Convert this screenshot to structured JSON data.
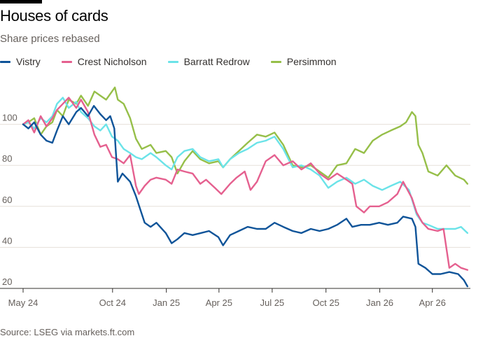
{
  "header": {
    "title": "Houses of cards",
    "subtitle": "Share prices rebased"
  },
  "source": "Source: LSEG via markets.ft.com",
  "colors": {
    "Vistry": "#0f5499",
    "Crest Nicholson": "#e5608f",
    "Barratt Redrow": "#6be3e8",
    "Persimmon": "#96bf49",
    "grid": "#e6e0da",
    "axis": "#33302e"
  },
  "chart_data": {
    "type": "line",
    "title": "Houses of cards",
    "subtitle": "Share prices rebased",
    "xlabel": "",
    "ylabel": "",
    "xlim": [
      "2024-05-01",
      "2026-06-05"
    ],
    "ylim": [
      20,
      120
    ],
    "yticks": [
      20,
      40,
      60,
      80,
      100
    ],
    "xticks": [
      {
        "label": "May 24",
        "date": "2024-05-01"
      },
      {
        "label": "Oct 24",
        "date": "2024-10-01"
      },
      {
        "label": "Jan 25",
        "date": "2025-01-01"
      },
      {
        "label": "Apr 25",
        "date": "2025-04-01"
      },
      {
        "label": "Jul 25",
        "date": "2025-07-01"
      },
      {
        "label": "Oct 25",
        "date": "2025-10-01"
      },
      {
        "label": "Jan 26",
        "date": "2026-01-01"
      },
      {
        "label": "Apr 26",
        "date": "2026-04-01"
      }
    ],
    "grid": "horizontal",
    "legend": "top-left",
    "series": [
      {
        "name": "Vistry",
        "color": "#0f5499",
        "points": [
          [
            "2024-05-01",
            100
          ],
          [
            "2024-05-10",
            98
          ],
          [
            "2024-05-20",
            101
          ],
          [
            "2024-05-31",
            95
          ],
          [
            "2024-06-10",
            92
          ],
          [
            "2024-06-20",
            91
          ],
          [
            "2024-06-28",
            97
          ],
          [
            "2024-07-08",
            104
          ],
          [
            "2024-07-18",
            100
          ],
          [
            "2024-07-31",
            106
          ],
          [
            "2024-08-08",
            108
          ],
          [
            "2024-08-20",
            104
          ],
          [
            "2024-08-30",
            109
          ],
          [
            "2024-09-10",
            105
          ],
          [
            "2024-09-20",
            102
          ],
          [
            "2024-09-27",
            104
          ],
          [
            "2024-10-04",
            98
          ],
          [
            "2024-10-10",
            72
          ],
          [
            "2024-10-18",
            76
          ],
          [
            "2024-10-31",
            72
          ],
          [
            "2024-11-10",
            65
          ],
          [
            "2024-11-18",
            58
          ],
          [
            "2024-11-25",
            52
          ],
          [
            "2024-12-05",
            50
          ],
          [
            "2024-12-15",
            52
          ],
          [
            "2024-12-31",
            47
          ],
          [
            "2025-01-10",
            42
          ],
          [
            "2025-01-20",
            44
          ],
          [
            "2025-02-01",
            47
          ],
          [
            "2025-02-15",
            46
          ],
          [
            "2025-03-01",
            47
          ],
          [
            "2025-03-15",
            48
          ],
          [
            "2025-03-31",
            45
          ],
          [
            "2025-04-08",
            41
          ],
          [
            "2025-04-20",
            46
          ],
          [
            "2025-05-05",
            48
          ],
          [
            "2025-05-20",
            50
          ],
          [
            "2025-06-05",
            49
          ],
          [
            "2025-06-20",
            49
          ],
          [
            "2025-07-05",
            52
          ],
          [
            "2025-07-20",
            50
          ],
          [
            "2025-08-05",
            48
          ],
          [
            "2025-08-20",
            47
          ],
          [
            "2025-09-05",
            49
          ],
          [
            "2025-09-20",
            48
          ],
          [
            "2025-10-05",
            49
          ],
          [
            "2025-10-20",
            51
          ],
          [
            "2025-11-05",
            54
          ],
          [
            "2025-11-15",
            50
          ],
          [
            "2025-11-30",
            51
          ],
          [
            "2025-12-15",
            51
          ],
          [
            "2025-12-31",
            52
          ],
          [
            "2026-01-15",
            51
          ],
          [
            "2026-01-31",
            52
          ],
          [
            "2026-02-10",
            55
          ],
          [
            "2026-02-25",
            54
          ],
          [
            "2026-03-03",
            50
          ],
          [
            "2026-03-08",
            32
          ],
          [
            "2026-03-20",
            30
          ],
          [
            "2026-04-01",
            27
          ],
          [
            "2026-04-15",
            27
          ],
          [
            "2026-04-30",
            28
          ],
          [
            "2026-05-15",
            27
          ],
          [
            "2026-05-25",
            24
          ],
          [
            "2026-05-31",
            21
          ]
        ]
      },
      {
        "name": "Crest Nicholson",
        "color": "#e5608f",
        "points": [
          [
            "2024-05-01",
            100
          ],
          [
            "2024-05-10",
            102
          ],
          [
            "2024-05-20",
            96
          ],
          [
            "2024-05-31",
            104
          ],
          [
            "2024-06-10",
            99
          ],
          [
            "2024-06-20",
            103
          ],
          [
            "2024-06-28",
            107
          ],
          [
            "2024-07-08",
            110
          ],
          [
            "2024-07-18",
            113
          ],
          [
            "2024-07-31",
            108
          ],
          [
            "2024-08-08",
            112
          ],
          [
            "2024-08-20",
            106
          ],
          [
            "2024-08-31",
            95
          ],
          [
            "2024-09-10",
            89
          ],
          [
            "2024-09-20",
            90
          ],
          [
            "2024-09-30",
            84
          ],
          [
            "2024-10-10",
            83
          ],
          [
            "2024-10-20",
            81
          ],
          [
            "2024-10-31",
            85
          ],
          [
            "2024-11-10",
            70
          ],
          [
            "2024-11-15",
            66
          ],
          [
            "2024-11-25",
            70
          ],
          [
            "2024-12-05",
            73
          ],
          [
            "2024-12-15",
            74
          ],
          [
            "2024-12-31",
            73
          ],
          [
            "2025-01-10",
            71
          ],
          [
            "2025-01-20",
            78
          ],
          [
            "2025-02-01",
            77
          ],
          [
            "2025-02-15",
            76
          ],
          [
            "2025-02-28",
            71
          ],
          [
            "2025-03-10",
            73
          ],
          [
            "2025-03-25",
            69
          ],
          [
            "2025-04-05",
            66
          ],
          [
            "2025-04-20",
            71
          ],
          [
            "2025-05-01",
            74
          ],
          [
            "2025-05-15",
            77
          ],
          [
            "2025-05-25",
            68
          ],
          [
            "2025-06-05",
            72
          ],
          [
            "2025-06-20",
            82
          ],
          [
            "2025-07-05",
            85
          ],
          [
            "2025-07-20",
            80
          ],
          [
            "2025-08-05",
            82
          ],
          [
            "2025-08-20",
            78
          ],
          [
            "2025-09-05",
            81
          ],
          [
            "2025-09-20",
            76
          ],
          [
            "2025-10-05",
            73
          ],
          [
            "2025-10-20",
            76
          ],
          [
            "2025-11-05",
            73
          ],
          [
            "2025-11-15",
            71
          ],
          [
            "2025-11-22",
            60
          ],
          [
            "2025-12-05",
            57
          ],
          [
            "2025-12-15",
            60
          ],
          [
            "2025-12-31",
            60
          ],
          [
            "2026-01-15",
            62
          ],
          [
            "2026-01-31",
            66
          ],
          [
            "2026-02-10",
            72
          ],
          [
            "2026-02-25",
            64
          ],
          [
            "2026-03-05",
            57
          ],
          [
            "2026-03-15",
            52
          ],
          [
            "2026-03-25",
            49
          ],
          [
            "2026-04-10",
            48
          ],
          [
            "2026-04-20",
            49
          ],
          [
            "2026-04-30",
            30
          ],
          [
            "2026-05-10",
            32
          ],
          [
            "2026-05-20",
            30
          ],
          [
            "2026-05-31",
            29
          ]
        ]
      },
      {
        "name": "Barratt Redrow",
        "color": "#6be3e8",
        "points": [
          [
            "2024-05-01",
            100
          ],
          [
            "2024-05-10",
            101
          ],
          [
            "2024-05-20",
            98
          ],
          [
            "2024-05-31",
            103
          ],
          [
            "2024-06-10",
            101
          ],
          [
            "2024-06-20",
            104
          ],
          [
            "2024-06-28",
            110
          ],
          [
            "2024-07-08",
            113
          ],
          [
            "2024-07-18",
            108
          ],
          [
            "2024-07-31",
            111
          ],
          [
            "2024-08-08",
            106
          ],
          [
            "2024-08-20",
            103
          ],
          [
            "2024-08-31",
            99
          ],
          [
            "2024-09-10",
            97
          ],
          [
            "2024-09-20",
            100
          ],
          [
            "2024-09-30",
            94
          ],
          [
            "2024-10-10",
            92
          ],
          [
            "2024-10-20",
            88
          ],
          [
            "2024-10-31",
            86
          ],
          [
            "2024-11-10",
            84
          ],
          [
            "2024-11-20",
            83
          ],
          [
            "2024-12-05",
            86
          ],
          [
            "2024-12-15",
            84
          ],
          [
            "2024-12-31",
            80
          ],
          [
            "2025-01-10",
            78
          ],
          [
            "2025-01-20",
            84
          ],
          [
            "2025-02-01",
            87
          ],
          [
            "2025-02-15",
            88
          ],
          [
            "2025-02-28",
            84
          ],
          [
            "2025-03-15",
            82
          ],
          [
            "2025-03-31",
            83
          ],
          [
            "2025-04-08",
            79
          ],
          [
            "2025-04-20",
            83
          ],
          [
            "2025-05-05",
            86
          ],
          [
            "2025-05-20",
            88
          ],
          [
            "2025-06-05",
            91
          ],
          [
            "2025-06-20",
            92
          ],
          [
            "2025-07-05",
            94
          ],
          [
            "2025-07-20",
            88
          ],
          [
            "2025-08-05",
            79
          ],
          [
            "2025-08-20",
            80
          ],
          [
            "2025-09-05",
            78
          ],
          [
            "2025-09-20",
            75
          ],
          [
            "2025-10-05",
            69
          ],
          [
            "2025-10-20",
            72
          ],
          [
            "2025-11-05",
            74
          ],
          [
            "2025-11-20",
            71
          ],
          [
            "2025-12-05",
            73
          ],
          [
            "2025-12-20",
            70
          ],
          [
            "2026-01-05",
            68
          ],
          [
            "2026-01-20",
            70
          ],
          [
            "2026-02-05",
            72
          ],
          [
            "2026-02-20",
            68
          ],
          [
            "2026-03-05",
            56
          ],
          [
            "2026-03-15",
            52
          ],
          [
            "2026-03-25",
            51
          ],
          [
            "2026-04-10",
            49
          ],
          [
            "2026-04-25",
            49
          ],
          [
            "2026-05-10",
            49
          ],
          [
            "2026-05-20",
            50
          ],
          [
            "2026-05-31",
            47
          ]
        ]
      },
      {
        "name": "Persimmon",
        "color": "#96bf49",
        "points": [
          [
            "2024-05-01",
            100
          ],
          [
            "2024-05-10",
            101
          ],
          [
            "2024-05-20",
            103
          ],
          [
            "2024-05-31",
            95
          ],
          [
            "2024-06-10",
            99
          ],
          [
            "2024-06-20",
            101
          ],
          [
            "2024-06-28",
            107
          ],
          [
            "2024-07-08",
            104
          ],
          [
            "2024-07-18",
            112
          ],
          [
            "2024-07-31",
            110
          ],
          [
            "2024-08-08",
            114
          ],
          [
            "2024-08-20",
            109
          ],
          [
            "2024-08-31",
            116
          ],
          [
            "2024-09-10",
            114
          ],
          [
            "2024-09-20",
            112
          ],
          [
            "2024-09-30",
            116
          ],
          [
            "2024-10-05",
            118
          ],
          [
            "2024-10-10",
            112
          ],
          [
            "2024-10-20",
            110
          ],
          [
            "2024-10-31",
            103
          ],
          [
            "2024-11-10",
            93
          ],
          [
            "2024-11-20",
            88
          ],
          [
            "2024-12-05",
            90
          ],
          [
            "2024-12-15",
            86
          ],
          [
            "2024-12-31",
            87
          ],
          [
            "2025-01-10",
            84
          ],
          [
            "2025-01-20",
            76
          ],
          [
            "2025-02-01",
            82
          ],
          [
            "2025-02-15",
            87
          ],
          [
            "2025-02-28",
            83
          ],
          [
            "2025-03-15",
            81
          ],
          [
            "2025-03-31",
            82
          ],
          [
            "2025-04-08",
            79
          ],
          [
            "2025-04-20",
            83
          ],
          [
            "2025-05-05",
            87
          ],
          [
            "2025-05-20",
            91
          ],
          [
            "2025-06-05",
            95
          ],
          [
            "2025-06-20",
            94
          ],
          [
            "2025-07-05",
            96
          ],
          [
            "2025-07-20",
            90
          ],
          [
            "2025-08-05",
            80
          ],
          [
            "2025-08-20",
            79
          ],
          [
            "2025-09-05",
            80
          ],
          [
            "2025-09-20",
            77
          ],
          [
            "2025-10-05",
            74
          ],
          [
            "2025-10-20",
            80
          ],
          [
            "2025-11-05",
            81
          ],
          [
            "2025-11-20",
            88
          ],
          [
            "2025-12-05",
            86
          ],
          [
            "2025-12-20",
            92
          ],
          [
            "2026-01-05",
            95
          ],
          [
            "2026-01-20",
            97
          ],
          [
            "2026-02-05",
            99
          ],
          [
            "2026-02-15",
            101
          ],
          [
            "2026-02-25",
            106
          ],
          [
            "2026-03-03",
            104
          ],
          [
            "2026-03-08",
            90
          ],
          [
            "2026-03-15",
            86
          ],
          [
            "2026-03-25",
            77
          ],
          [
            "2026-04-10",
            75
          ],
          [
            "2026-04-25",
            80
          ],
          [
            "2026-05-10",
            75
          ],
          [
            "2026-05-25",
            73
          ],
          [
            "2026-05-31",
            71
          ]
        ]
      }
    ]
  }
}
